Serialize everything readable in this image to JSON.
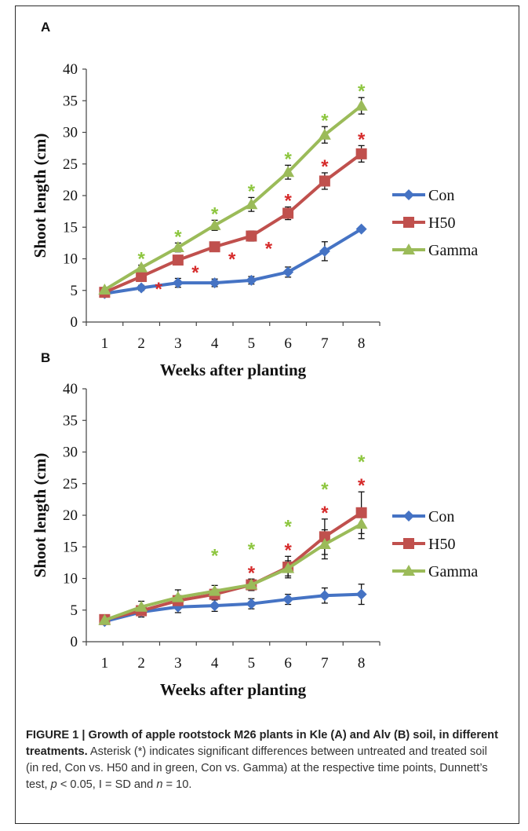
{
  "colors": {
    "con": "#4573C4",
    "h50": "#C0504D",
    "gamma": "#9BBB59",
    "star_h50": "#D62B2B",
    "star_gamma": "#8DC63F"
  },
  "chart_data": [
    {
      "panel": "A",
      "type": "line",
      "x": [
        1,
        2,
        3,
        4,
        5,
        6,
        7,
        8
      ],
      "xlabel": "Weeks after planting",
      "ylabel": "Shoot length (cm)",
      "ylim": [
        0,
        40
      ],
      "yticks": [
        0,
        5,
        10,
        15,
        20,
        25,
        30,
        35,
        40
      ],
      "legend_position": "right",
      "series": [
        {
          "name": "Con",
          "marker": "diamond",
          "values": [
            4.5,
            5.4,
            6.2,
            6.2,
            6.6,
            7.9,
            11.2,
            14.7
          ],
          "errors": [
            0.3,
            0.4,
            0.7,
            0.6,
            0.6,
            0.8,
            1.5,
            0.3
          ]
        },
        {
          "name": "H50",
          "marker": "square",
          "values": [
            4.7,
            7.2,
            9.8,
            11.9,
            13.6,
            17.2,
            22.3,
            26.6
          ],
          "errors": [
            0.4,
            0.5,
            0.7,
            0.6,
            0.8,
            1.0,
            1.3,
            1.3
          ]
        },
        {
          "name": "Gamma",
          "marker": "triangle",
          "values": [
            5.1,
            8.6,
            11.8,
            15.3,
            18.6,
            23.7,
            29.6,
            34.2
          ],
          "errors": [
            0.3,
            0.4,
            0.7,
            0.8,
            1.1,
            1.1,
            1.3,
            1.3
          ]
        }
      ],
      "significance": [
        {
          "series": "H50",
          "x": [
            2,
            3,
            4,
            5,
            6,
            7,
            8
          ]
        },
        {
          "series": "Gamma",
          "x": [
            2,
            3,
            4,
            5,
            6,
            7,
            8
          ]
        }
      ]
    },
    {
      "panel": "B",
      "type": "line",
      "x": [
        1,
        2,
        3,
        4,
        5,
        6,
        7,
        8
      ],
      "xlabel": "Weeks after planting",
      "ylabel": "Shoot length (cm)",
      "ylim": [
        0,
        40
      ],
      "yticks": [
        0,
        5,
        10,
        15,
        20,
        25,
        30,
        35,
        40
      ],
      "legend_position": "right",
      "series": [
        {
          "name": "Con",
          "marker": "diamond",
          "values": [
            3.2,
            4.7,
            5.5,
            5.7,
            6.0,
            6.7,
            7.3,
            7.5
          ],
          "errors": [
            0.4,
            0.8,
            0.9,
            0.9,
            0.8,
            0.8,
            1.2,
            1.6
          ]
        },
        {
          "name": "H50",
          "marker": "square",
          "values": [
            3.5,
            4.9,
            6.5,
            7.5,
            9.0,
            11.8,
            16.6,
            20.4
          ],
          "errors": [
            0.3,
            0.7,
            0.8,
            0.8,
            0.9,
            1.7,
            2.8,
            3.3
          ]
        },
        {
          "name": "Gamma",
          "marker": "triangle",
          "values": [
            3.4,
            5.5,
            7.0,
            8.0,
            9.0,
            11.6,
            15.4,
            18.6
          ],
          "errors": [
            0.3,
            0.9,
            1.2,
            0.9,
            0.9,
            1.2,
            2.3,
            2.3
          ]
        }
      ],
      "significance": [
        {
          "series": "H50",
          "x": [
            5,
            6,
            7,
            8
          ]
        },
        {
          "series": "Gamma",
          "x": [
            4,
            5,
            6,
            7,
            8
          ]
        }
      ]
    }
  ],
  "caption": {
    "bold": "FIGURE 1 | Growth of apple rootstock M26 plants in Kle (A) and Alv (B) soil, in different treatments.",
    "text_1": " Asterisk (*) indicates significant differences between untreated and treated soil (in red, Con vs. H50 and in green, Con vs. Gamma) at the respective time points, Dunnett’s test, ",
    "p": "p",
    "text_2": " < 0.05, I = SD and ",
    "n": "n",
    "text_3": " = 10."
  }
}
